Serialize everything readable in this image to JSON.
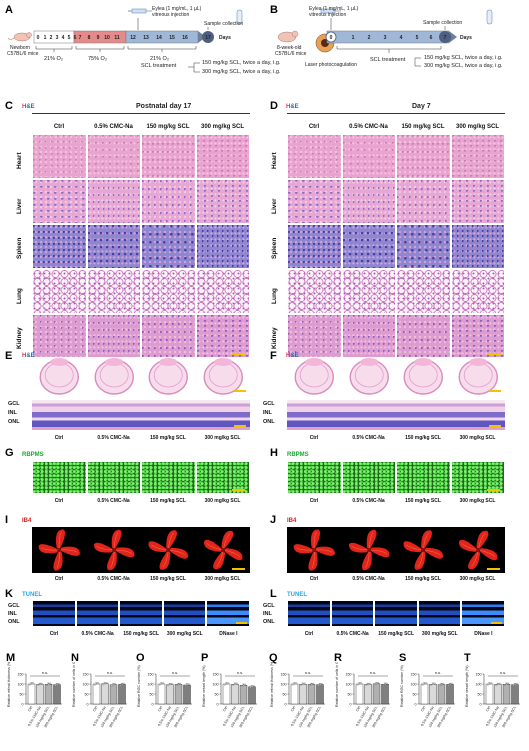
{
  "panels": {
    "A": {
      "label": "A",
      "mouse": "Newborn\nC57BL/6 mice",
      "injection": "Eylea (1 mg/mL, 1 µL)\nvitreous injection",
      "sample": "Sample collection",
      "days_word": "Days",
      "days": [
        "0",
        "1",
        "2",
        "3",
        "4",
        "5",
        "6",
        "7",
        "8",
        "9",
        "10",
        "11",
        "12",
        "13",
        "14",
        "15",
        "16",
        "17"
      ],
      "o2_a": "21% O₂",
      "o2_b": "75% O₂",
      "o2_c": "21% O₂",
      "treatment": "SCL treatment",
      "dose1": "150 mg/kg SCL, twice a day, i.g.",
      "dose2": "300 mg/kg SCL, twice a day, i.g."
    },
    "B": {
      "label": "B",
      "mouse": "8-week-old\nC57BL/6 mice",
      "injection": "Eylea (1 mg/mL, 1 µL)\nvitreous injection",
      "laser": "Laser photocoagulation",
      "sample": "Sample collection",
      "days_word": "Days",
      "days": [
        "0",
        "1",
        "2",
        "3",
        "4",
        "5",
        "6",
        "7"
      ],
      "treatment": "SCL treatment",
      "dose1": "150 mg/kg SCL, twice a day, i.g.",
      "dose2": "300 mg/kg SCL, twice a day, i.g."
    },
    "C": {
      "label": "C",
      "stain": "H&E",
      "title": "Postnatal day 17"
    },
    "D": {
      "label": "D",
      "stain": "H&E",
      "title": "Day 7"
    },
    "E": {
      "label": "E",
      "stain": "H&E"
    },
    "F": {
      "label": "F",
      "stain": "H&E"
    },
    "G": {
      "label": "G",
      "stain": "RBPMS"
    },
    "H": {
      "label": "H",
      "stain": "RBPMS"
    },
    "I": {
      "label": "I",
      "stain": "IB4"
    },
    "J": {
      "label": "J",
      "stain": "IB4"
    },
    "K": {
      "label": "K",
      "stain": "TUNEL"
    },
    "L": {
      "label": "L",
      "stain": "TUNEL"
    }
  },
  "groups": [
    "Ctrl",
    "0.5% CMC-Na",
    "150 mg/kg SCL",
    "300 mg/kg SCL"
  ],
  "groups_tunel": [
    "Ctrl",
    "0.5% CMC-Na",
    "150 mg/kg SCL",
    "300 mg/kg SCL",
    "DNase I"
  ],
  "organs": [
    "Heart",
    "Liver",
    "Spleen",
    "Lung",
    "Kidney"
  ],
  "retina_layers": [
    "GCL",
    "INL",
    "ONL"
  ],
  "colors": {
    "he_pink": "#e58cc0",
    "he_purple": "#8a6fc8",
    "rbpms_green": "#3fcf3a",
    "ib4_red": "#e1251b",
    "tunel_blue": "#1f5fd6",
    "timeline_blue": "#9fb8d8",
    "timeline_red": "#e58a8a",
    "stain_H": "#e2334d",
    "stain_E": "#2a6ab5",
    "rbpms": "#1aa830",
    "ib4": "#d81e1e",
    "tunel": "#2aa7e0",
    "scalebar": "#f2c400"
  },
  "charts": {
    "ns": "n.s.",
    "xlabels": [
      "Ctrl",
      "0.5% CMC-Na",
      "150 mg/kg SCL",
      "300 mg/kg SCL"
    ],
    "list": [
      {
        "label": "M",
        "ylabel": "Relative retinal thickness (%)"
      },
      {
        "label": "N",
        "ylabel": "Relative number of cells in GCL (%)"
      },
      {
        "label": "O",
        "ylabel": "Relative RGC number (%)"
      },
      {
        "label": "P",
        "ylabel": "Relative vessel length (%)"
      },
      {
        "label": "Q",
        "ylabel": "Relative retinal thickness (%)"
      },
      {
        "label": "R",
        "ylabel": "Relative number of cells in GCL (%)"
      },
      {
        "label": "S",
        "ylabel": "Relative RGC number (%)"
      },
      {
        "label": "T",
        "ylabel": "Relative vessel length (%)"
      }
    ]
  },
  "chart_data": [
    {
      "type": "bar",
      "title": "",
      "xlabel": "",
      "ylabel": "Relative retinal thickness (%)",
      "categories": [
        "Ctrl",
        "0.5% CMC-Na",
        "150 mg/kg SCL",
        "300 mg/kg SCL"
      ],
      "values": [
        100,
        98,
        99,
        97
      ],
      "ylim": [
        0,
        150
      ]
    },
    {
      "type": "bar",
      "title": "",
      "xlabel": "",
      "ylabel": "Relative number of cells in GCL (%)",
      "categories": [
        "Ctrl",
        "0.5% CMC-Na",
        "150 mg/kg SCL",
        "300 mg/kg SCL"
      ],
      "values": [
        100,
        101,
        96,
        98
      ],
      "ylim": [
        0,
        150
      ]
    },
    {
      "type": "bar",
      "title": "",
      "xlabel": "",
      "ylabel": "Relative RGC number (%)",
      "categories": [
        "Ctrl",
        "0.5% CMC-Na",
        "150 mg/kg SCL",
        "300 mg/kg SCL"
      ],
      "values": [
        100,
        97,
        98,
        95
      ],
      "ylim": [
        0,
        150
      ]
    },
    {
      "type": "bar",
      "title": "",
      "xlabel": "",
      "ylabel": "Relative vessel length (%)",
      "categories": [
        "Ctrl",
        "0.5% CMC-Na",
        "150 mg/kg SCL",
        "300 mg/kg SCL"
      ],
      "values": [
        100,
        99,
        94,
        86
      ],
      "ylim": [
        0,
        150
      ]
    },
    {
      "type": "bar",
      "title": "",
      "xlabel": "",
      "ylabel": "Relative retinal thickness (%)",
      "categories": [
        "Ctrl",
        "0.5% CMC-Na",
        "150 mg/kg SCL",
        "300 mg/kg SCL"
      ],
      "values": [
        100,
        99,
        98,
        97
      ],
      "ylim": [
        0,
        150
      ]
    },
    {
      "type": "bar",
      "title": "",
      "xlabel": "",
      "ylabel": "Relative number of cells in GCL (%)",
      "categories": [
        "Ctrl",
        "0.5% CMC-Na",
        "150 mg/kg SCL",
        "300 mg/kg SCL"
      ],
      "values": [
        100,
        98,
        101,
        99
      ],
      "ylim": [
        0,
        150
      ]
    },
    {
      "type": "bar",
      "title": "",
      "xlabel": "",
      "ylabel": "Relative RGC number (%)",
      "categories": [
        "Ctrl",
        "0.5% CMC-Na",
        "150 mg/kg SCL",
        "300 mg/kg SCL"
      ],
      "values": [
        100,
        99,
        97,
        98
      ],
      "ylim": [
        0,
        150
      ]
    },
    {
      "type": "bar",
      "title": "",
      "xlabel": "",
      "ylabel": "Relative vessel length (%)",
      "categories": [
        "Ctrl",
        "0.5% CMC-Na",
        "150 mg/kg SCL",
        "300 mg/kg SCL"
      ],
      "values": [
        100,
        98,
        99,
        97
      ],
      "ylim": [
        0,
        150
      ]
    }
  ]
}
